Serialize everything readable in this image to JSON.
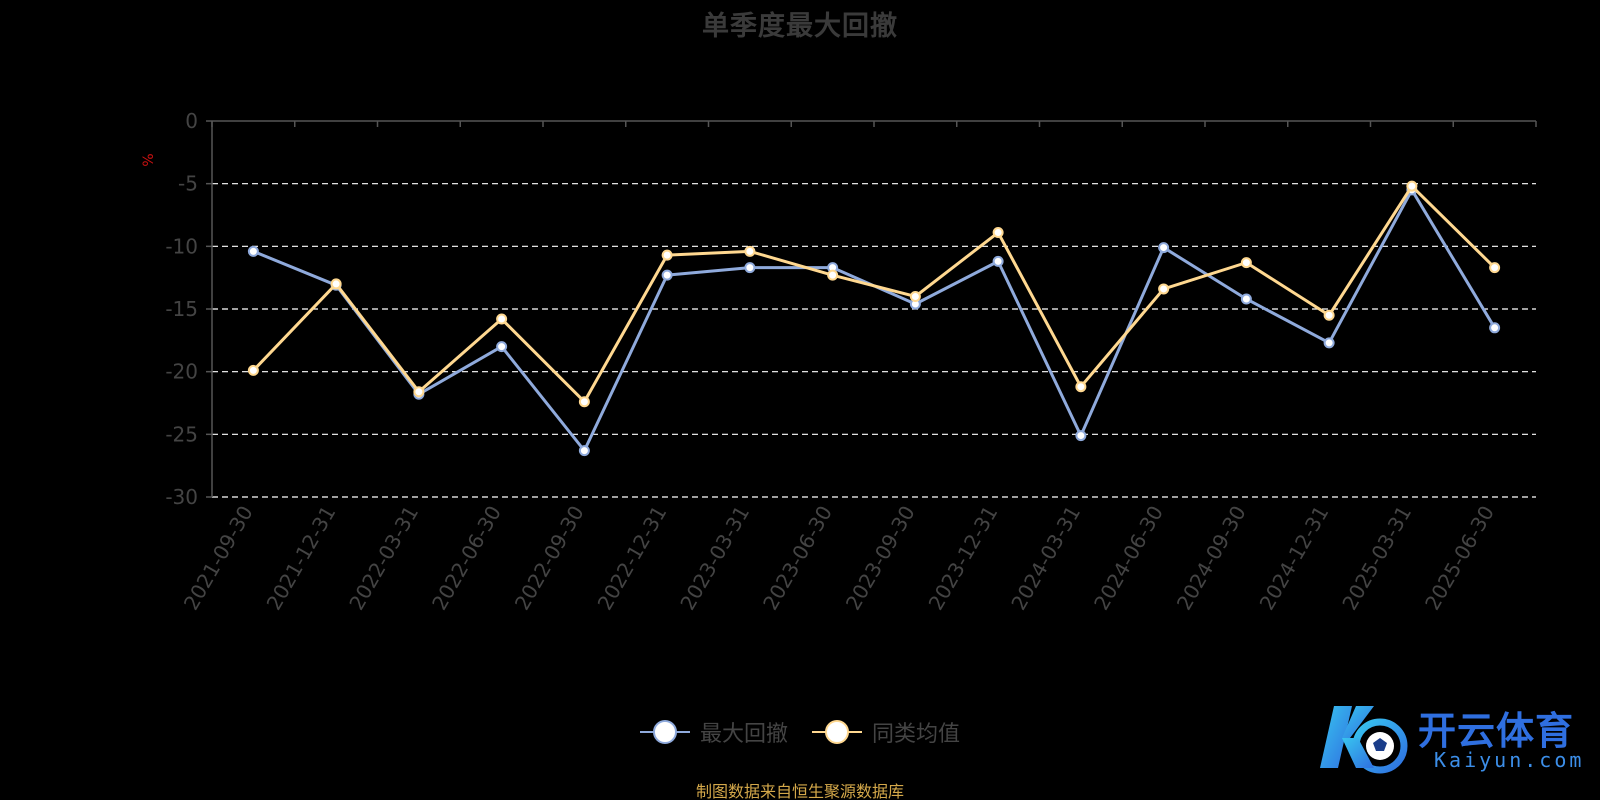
{
  "logo": {
    "text_cn": "开云体育",
    "text_en": "Kaiyun.com",
    "color_primary": "#2f6fe0",
    "color_secondary": "#38c6f0"
  },
  "source_note": "制图数据来自恒生聚源数据库",
  "colors": {
    "background": "#000000",
    "axis": "#555555",
    "tick_label": "#444444",
    "grid": "#ffffff",
    "unit_label": "#cc1111"
  },
  "chart_data": {
    "type": "line",
    "title": "单季度最大回撤",
    "ylabel": "%",
    "ylim": [
      -30,
      0
    ],
    "yticks": [
      0,
      -5,
      -10,
      -15,
      -20,
      -25,
      -30
    ],
    "grid": true,
    "grid_style": "dashed",
    "legend_position": "bottom-center",
    "categories": [
      "2021-09-30",
      "2021-12-31",
      "2022-03-31",
      "2022-06-30",
      "2022-09-30",
      "2022-12-31",
      "2023-03-31",
      "2023-06-30",
      "2023-09-30",
      "2023-12-31",
      "2024-03-31",
      "2024-06-30",
      "2024-09-30",
      "2024-12-31",
      "2025-03-31",
      "2025-06-30"
    ],
    "series": [
      {
        "name": "最大回撤",
        "color": "#8faadc",
        "values": [
          -10.4,
          -13.1,
          -21.8,
          -18.0,
          -26.3,
          -12.3,
          -11.7,
          -11.7,
          -14.6,
          -11.2,
          -25.1,
          -10.1,
          -14.2,
          -17.7,
          -5.5,
          -16.5
        ]
      },
      {
        "name": "同类均值",
        "color": "#ffd890",
        "values": [
          -19.9,
          -13.0,
          -21.6,
          -15.8,
          -22.4,
          -10.7,
          -10.4,
          -12.3,
          -14.0,
          -8.9,
          -21.2,
          -13.4,
          -11.3,
          -15.5,
          -5.2,
          -11.7
        ]
      }
    ]
  }
}
